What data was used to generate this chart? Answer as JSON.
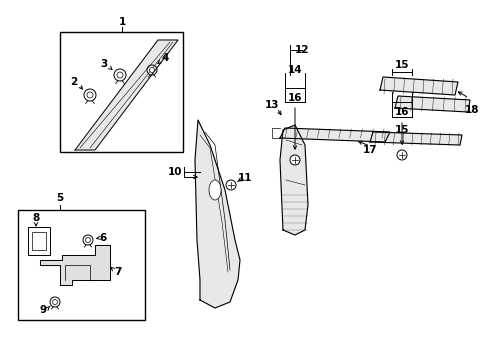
{
  "background_color": "#ffffff",
  "line_color": "#000000",
  "fig_width": 4.89,
  "fig_height": 3.6,
  "dpi": 100,
  "xlim": [
    0,
    489
  ],
  "ylim": [
    0,
    360
  ]
}
